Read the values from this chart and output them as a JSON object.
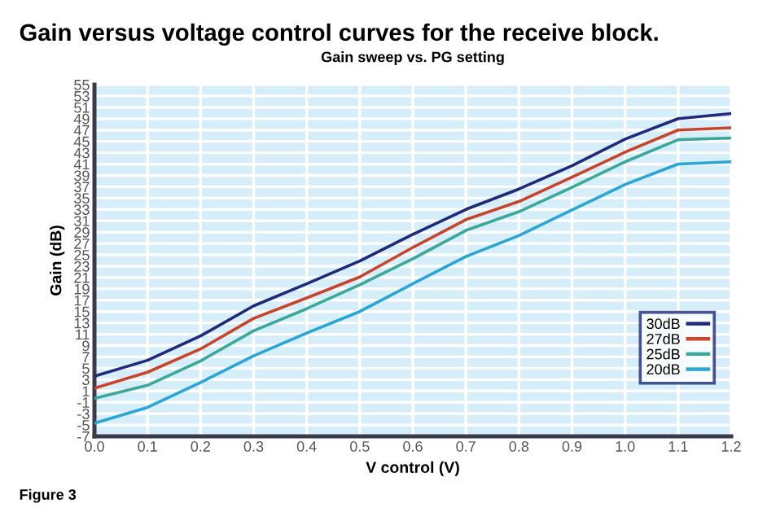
{
  "chart_data": {
    "type": "line",
    "title": "Gain versus voltage control curves for the receive block.",
    "subtitle": "Gain sweep vs. PG setting",
    "xlabel": "V control (V)",
    "ylabel": "Gain (dB)",
    "annotations": [
      "Figure 3"
    ],
    "x": [
      0.0,
      0.1,
      0.2,
      0.3,
      0.4,
      0.5,
      0.6,
      0.7,
      0.8,
      0.9,
      1.0,
      1.1,
      1.2
    ],
    "series": [
      {
        "name": "30dB",
        "color": "#1f2a7a",
        "values": [
          3.6,
          6.4,
          10.7,
          16,
          19.9,
          23.9,
          28.6,
          33,
          36.6,
          40.7,
          45.4,
          49,
          49.9
        ]
      },
      {
        "name": "27dB",
        "color": "#c8442a",
        "values": [
          1.5,
          4.3,
          8.4,
          13.8,
          17.4,
          21.1,
          26.3,
          31.2,
          34.4,
          38.7,
          43.1,
          47,
          47.4
        ]
      },
      {
        "name": "25dB",
        "color": "#3aa89a",
        "values": [
          -0.3,
          2,
          6.3,
          11.6,
          15.5,
          19.7,
          24.3,
          29.3,
          32.6,
          36.9,
          41.4,
          45.3,
          45.6
        ]
      },
      {
        "name": "20dB",
        "color": "#2aa6d6",
        "values": [
          -4.7,
          -1.9,
          2.5,
          7.2,
          11.2,
          15,
          19.9,
          24.7,
          28.4,
          32.9,
          37.4,
          41,
          41.4
        ]
      }
    ],
    "xlim": [
      0,
      1.2
    ],
    "ylim": [
      -7,
      55
    ],
    "xticks": [
      {
        "value": 0,
        "label": "0.0"
      },
      0.1,
      0.2,
      0.3,
      0.4,
      0.5,
      0.6,
      0.7,
      0.8,
      0.9,
      {
        "value": 1,
        "label": "1.0"
      },
      1.1,
      1.2
    ],
    "yticks": [
      -7,
      -5,
      -3,
      -1,
      1,
      3,
      5,
      7,
      9,
      11,
      13,
      15,
      17,
      19,
      21,
      23,
      25,
      27,
      29,
      31,
      33,
      35,
      37,
      39,
      41,
      43,
      45,
      47,
      49,
      51,
      53,
      55
    ],
    "grid": true,
    "legend": "lower right",
    "marker": "none",
    "line_style": "solid"
  }
}
